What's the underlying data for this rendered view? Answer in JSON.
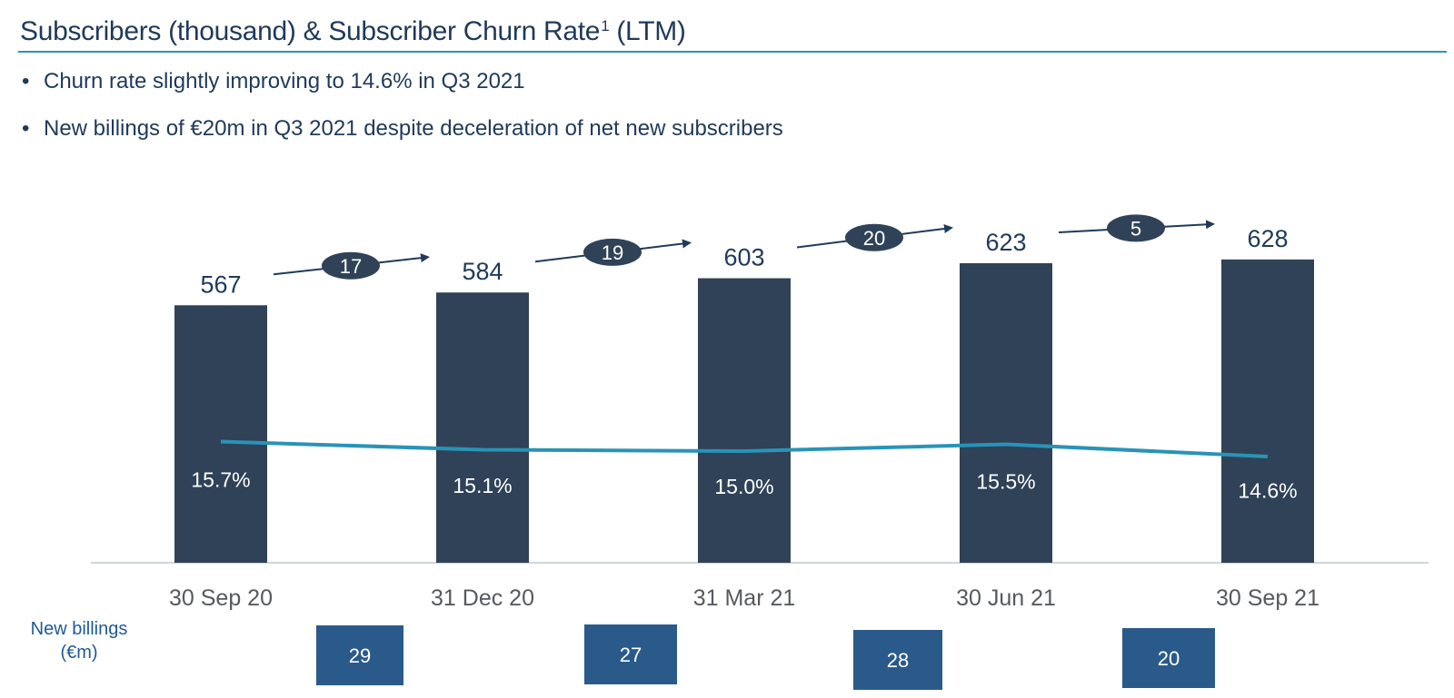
{
  "header": {
    "title": "Subscribers (thousand) & Subscriber Churn Rate",
    "footnote_marker": "1",
    "title_suffix": "(LTM)"
  },
  "bullets": [
    "Churn rate slightly improving to 14.6% in Q3 2021",
    "New billings of €20m in Q3 2021 despite deceleration of net new subscribers"
  ],
  "chart_data": {
    "type": "bar",
    "title": "Subscribers (thousand) & Subscriber Churn Rate (LTM)",
    "categories": [
      "30 Sep 20",
      "31 Dec 20",
      "31 Mar 21",
      "30 Jun 21",
      "30 Sep 21"
    ],
    "series": [
      {
        "type": "bar",
        "values": [
          567,
          584,
          603,
          623,
          628
        ],
        "labels": [
          "567",
          "584",
          "603",
          "623",
          "628"
        ]
      },
      {
        "type": "line",
        "values": [
          15.7,
          15.1,
          15.0,
          15.5,
          14.6
        ],
        "labels": [
          "15.7%",
          "15.1%",
          "15.0%",
          "15.5%",
          "14.6%"
        ]
      }
    ],
    "net_new_subscribers": {
      "values": [
        17,
        19,
        20,
        5
      ],
      "labels": [
        "17",
        "19",
        "20",
        "5"
      ]
    },
    "new_billings": {
      "label_line1": "New billings",
      "label_line2": "(€m)",
      "values": [
        29,
        27,
        28,
        20
      ],
      "labels": [
        "29",
        "27",
        "28",
        "20"
      ]
    },
    "colors": {
      "bar": "#2f4257",
      "line": "#2a93b7",
      "bubble": "#2f4257",
      "billing_box": "#2a5a8a",
      "axis": "#cfd6dc"
    },
    "grid": false
  }
}
